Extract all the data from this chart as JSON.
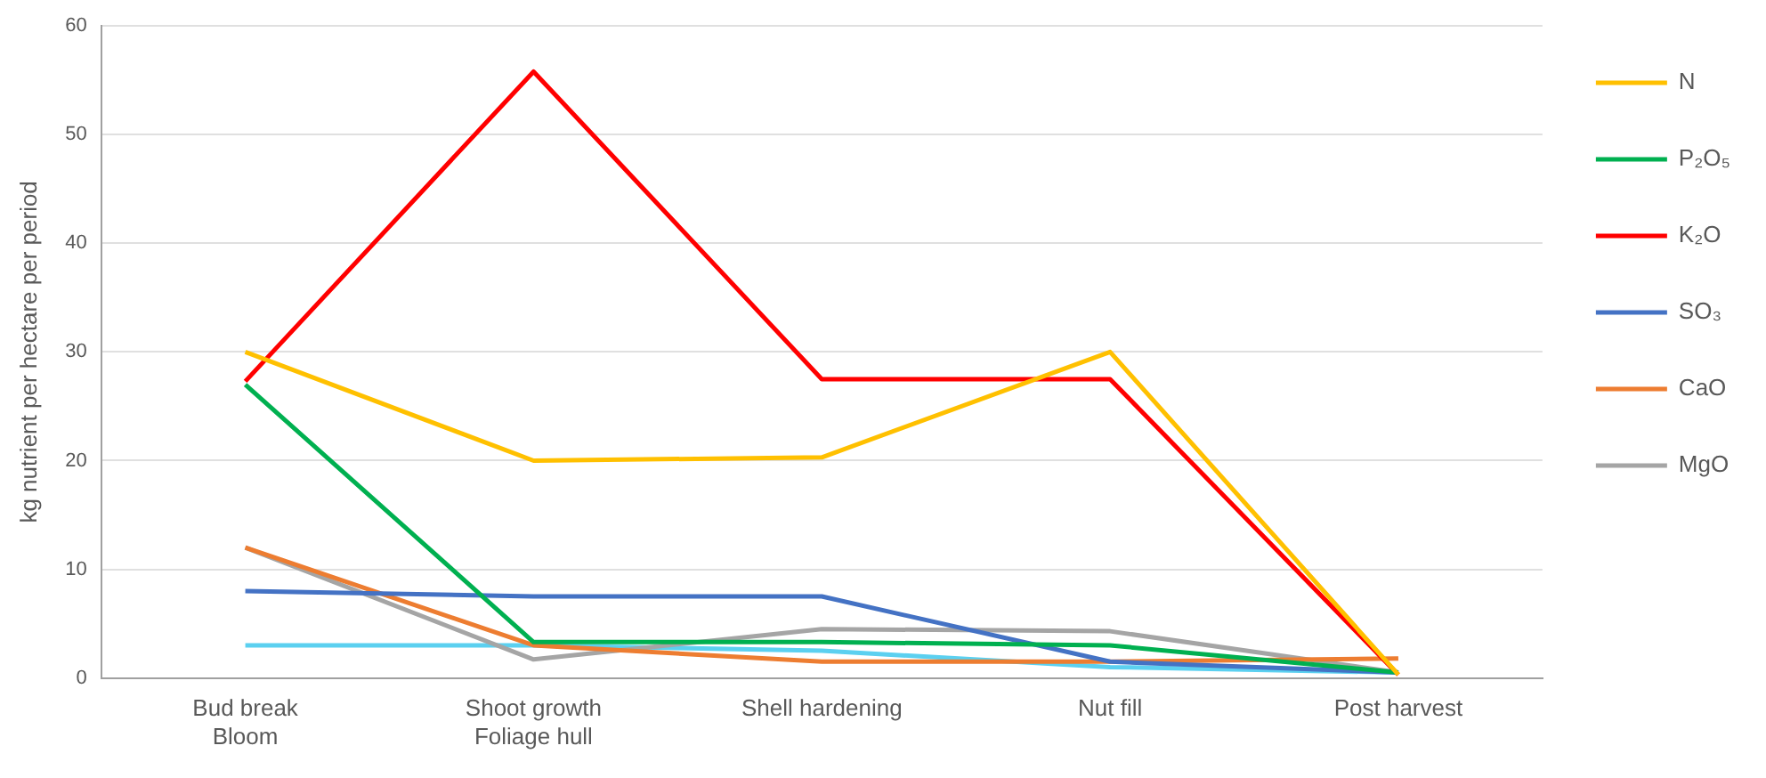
{
  "chart_data": {
    "type": "line",
    "ylabel": "kg nutrient per hectare per period",
    "categories": [
      "Bud break\nBloom",
      "Shoot growth\nFoliage hull",
      "Shell hardening",
      "Nut fill",
      "Post harvest"
    ],
    "series": [
      {
        "name": "N",
        "color": "#ffc000",
        "values": [
          30,
          20,
          20.3,
          30,
          0.3
        ]
      },
      {
        "name": "P₂O₅",
        "color": "#00b050",
        "values": [
          27,
          3.3,
          3.3,
          3,
          0.5
        ]
      },
      {
        "name": "K₂O",
        "color": "#ff0000",
        "values": [
          27.3,
          55.8,
          27.5,
          27.5,
          0.3
        ]
      },
      {
        "name": "SO₃",
        "color": "#4472c4",
        "values": [
          8,
          7.5,
          7.5,
          1.5,
          0.5
        ]
      },
      {
        "name": "CaO",
        "color": "#ed7d31",
        "values": [
          12,
          3,
          1.5,
          1.5,
          1.8
        ]
      },
      {
        "name": "MgO",
        "color": "#a5a5a5",
        "values": [
          12,
          1.7,
          4.5,
          4.3,
          0.5
        ]
      },
      {
        "color": "#5bd0f0",
        "values": [
          3,
          3,
          2.5,
          1,
          0.5
        ]
      }
    ],
    "ylim": [
      0,
      60
    ],
    "yticks": [
      0,
      10,
      20,
      30,
      40,
      50,
      60
    ],
    "grid": "y",
    "legend": "right",
    "marker": "none",
    "line_style": "solid"
  }
}
